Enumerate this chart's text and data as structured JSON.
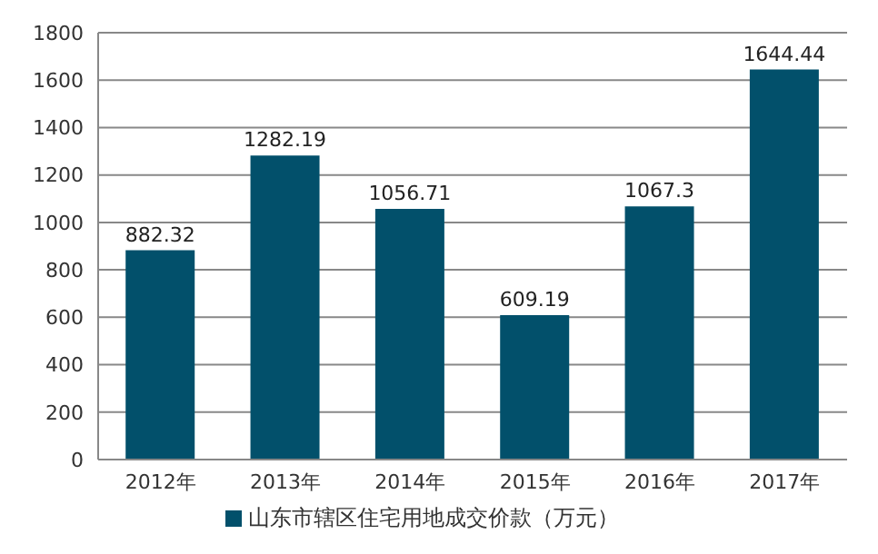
{
  "chart_data": {
    "type": "bar",
    "categories": [
      "2012年",
      "2013年",
      "2014年",
      "2015年",
      "2016年",
      "2017年"
    ],
    "series": [
      {
        "name": "山东市辖区住宅用地成交价款（万元）",
        "color": "#02506b",
        "values": [
          882.32,
          1282.19,
          1056.71,
          609.19,
          1067.3,
          1644.44
        ]
      }
    ],
    "ylim": [
      0,
      1800
    ],
    "yticks": [
      0,
      200,
      400,
      600,
      800,
      1000,
      1200,
      1400,
      1600,
      1800
    ],
    "grid": "y",
    "legend": "bottom",
    "data_labels": true
  }
}
